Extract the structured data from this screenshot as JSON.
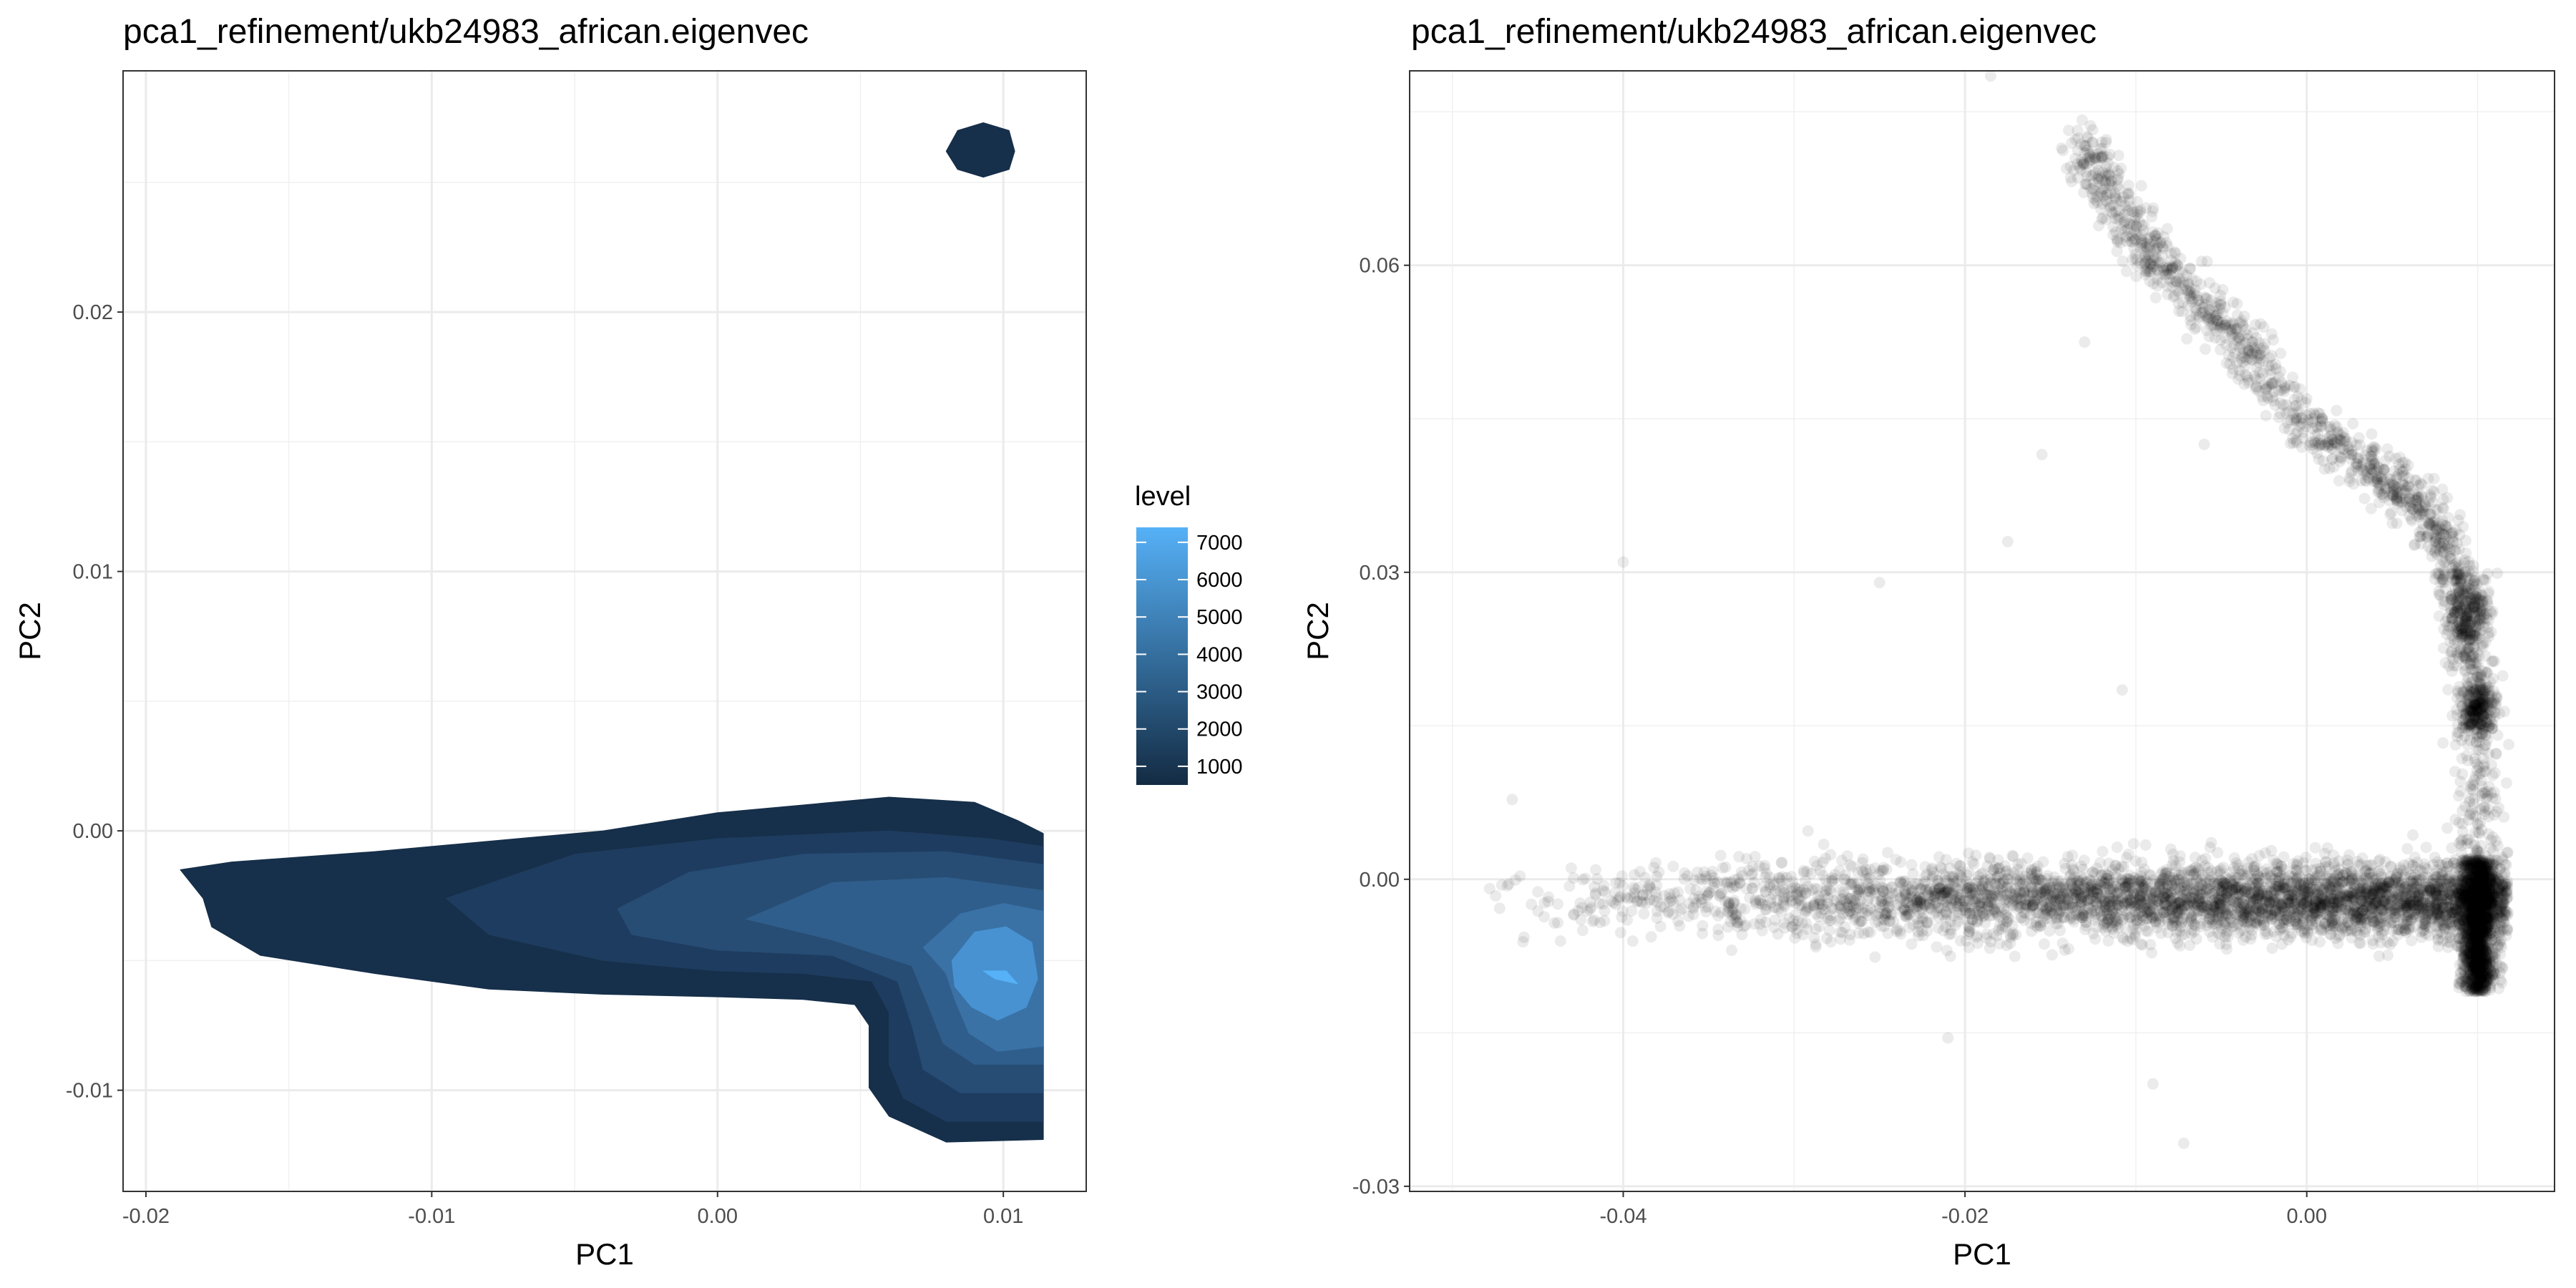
{
  "chart_data": [
    {
      "type": "contour",
      "title": "pca1_refinement/ukb24983_african.eigenvec",
      "xlabel": "PC1",
      "ylabel": "PC2",
      "xlim": [
        -0.0208,
        0.0129
      ],
      "ylim": [
        -0.0139,
        0.0293
      ],
      "x_ticks": [
        -0.02,
        -0.01,
        0.0,
        0.01
      ],
      "x_tick_labels": [
        "-0.02",
        "-0.01",
        "0.00",
        "0.01"
      ],
      "y_ticks": [
        -0.01,
        0.0,
        0.01,
        0.02
      ],
      "y_tick_labels": [
        "-0.01",
        "0.00",
        "0.01",
        "0.02"
      ],
      "grid": true,
      "legend": {
        "title": "level",
        "position": "right",
        "range": [
          500,
          7400
        ],
        "ticks": [
          1000,
          2000,
          3000,
          4000,
          5000,
          6000,
          7000
        ],
        "tick_labels": [
          "1000",
          "2000",
          "3000",
          "4000",
          "5000",
          "6000",
          "7000"
        ],
        "color_low": "#132B43",
        "color_high": "#56B1F7"
      },
      "levels": [
        {
          "level": 1000,
          "color": "#162f4a",
          "polygons": [
            [
              [
                -0.0188,
                -0.0015
              ],
              [
                -0.017,
                -0.0012
              ],
              [
                -0.012,
                -0.0008
              ],
              [
                -0.008,
                -0.0004
              ],
              [
                -0.004,
                0.0
              ],
              [
                0.0,
                0.0007
              ],
              [
                0.006,
                0.0013
              ],
              [
                0.009,
                0.0011
              ],
              [
                0.0105,
                0.0004
              ],
              [
                0.0114,
                -0.0001
              ],
              [
                0.0114,
                -0.0119
              ],
              [
                0.008,
                -0.012
              ],
              [
                0.006,
                -0.011
              ],
              [
                0.0053,
                -0.0099
              ],
              [
                0.0053,
                -0.0075
              ],
              [
                0.0048,
                -0.0067
              ],
              [
                0.003,
                -0.0065
              ],
              [
                0.0,
                -0.0064
              ],
              [
                -0.004,
                -0.0063
              ],
              [
                -0.008,
                -0.0061
              ],
              [
                -0.012,
                -0.0055
              ],
              [
                -0.016,
                -0.0048
              ],
              [
                -0.0177,
                -0.0037
              ],
              [
                -0.018,
                -0.0026
              ]
            ],
            [
              [
                0.008,
                0.0262
              ],
              [
                0.0084,
                0.027
              ],
              [
                0.0093,
                0.0273
              ],
              [
                0.0102,
                0.027
              ],
              [
                0.0104,
                0.0262
              ],
              [
                0.0102,
                0.0255
              ],
              [
                0.0093,
                0.0252
              ],
              [
                0.0084,
                0.0255
              ]
            ]
          ]
        },
        {
          "level": 2000,
          "color": "#1e3c5f",
          "polygons": [
            [
              [
                -0.0095,
                -0.0026
              ],
              [
                -0.005,
                -0.0009
              ],
              [
                0.0,
                -0.0003
              ],
              [
                0.006,
                0.0
              ],
              [
                0.0095,
                -0.0003
              ],
              [
                0.0114,
                -0.0006
              ],
              [
                0.0114,
                -0.0112
              ],
              [
                0.008,
                -0.0112
              ],
              [
                0.0065,
                -0.0103
              ],
              [
                0.006,
                -0.009
              ],
              [
                0.006,
                -0.007
              ],
              [
                0.0054,
                -0.0058
              ],
              [
                0.003,
                -0.0055
              ],
              [
                0.0,
                -0.0054
              ],
              [
                -0.004,
                -0.005
              ],
              [
                -0.008,
                -0.004
              ]
            ]
          ]
        },
        {
          "level": 3000,
          "color": "#274d75",
          "polygons": [
            [
              [
                -0.0035,
                -0.003
              ],
              [
                -0.001,
                -0.0016
              ],
              [
                0.003,
                -0.0009
              ],
              [
                0.008,
                -0.0008
              ],
              [
                0.0114,
                -0.0013
              ],
              [
                0.0114,
                -0.0101
              ],
              [
                0.0085,
                -0.0101
              ],
              [
                0.0072,
                -0.0092
              ],
              [
                0.0068,
                -0.0075
              ],
              [
                0.0063,
                -0.0058
              ],
              [
                0.004,
                -0.0048
              ],
              [
                0.0,
                -0.0046
              ],
              [
                -0.003,
                -0.004
              ]
            ]
          ]
        },
        {
          "level": 4000,
          "color": "#305e8c",
          "polygons": [
            [
              [
                0.001,
                -0.0034
              ],
              [
                0.004,
                -0.002
              ],
              [
                0.008,
                -0.0018
              ],
              [
                0.0114,
                -0.0023
              ],
              [
                0.0114,
                -0.009
              ],
              [
                0.009,
                -0.009
              ],
              [
                0.0079,
                -0.0082
              ],
              [
                0.0074,
                -0.0068
              ],
              [
                0.0068,
                -0.0052
              ],
              [
                0.004,
                -0.0042
              ]
            ]
          ]
        },
        {
          "level": 5000,
          "color": "#3a72a6",
          "polygons": [
            [
              [
                0.0072,
                -0.0045
              ],
              [
                0.0085,
                -0.0032
              ],
              [
                0.01,
                -0.0028
              ],
              [
                0.0114,
                -0.0031
              ],
              [
                0.0114,
                -0.0083
              ],
              [
                0.0098,
                -0.0085
              ],
              [
                0.0088,
                -0.0078
              ],
              [
                0.0083,
                -0.0065
              ],
              [
                0.008,
                -0.0055
              ]
            ]
          ]
        },
        {
          "level": 6000,
          "color": "#4892d2",
          "polygons": [
            [
              [
                0.0082,
                -0.005
              ],
              [
                0.009,
                -0.0039
              ],
              [
                0.0101,
                -0.0037
              ],
              [
                0.011,
                -0.0043
              ],
              [
                0.0112,
                -0.0057
              ],
              [
                0.0108,
                -0.0068
              ],
              [
                0.0098,
                -0.0073
              ],
              [
                0.0089,
                -0.0068
              ],
              [
                0.0083,
                -0.006
              ]
            ]
          ]
        },
        {
          "level": 7000,
          "color": "#56b1f7",
          "polygons": [
            [
              [
                0.0093,
                -0.0054
              ],
              [
                0.0101,
                -0.0054
              ],
              [
                0.0105,
                -0.0059
              ],
              [
                0.0097,
                -0.0057
              ]
            ]
          ]
        }
      ]
    },
    {
      "type": "scatter",
      "title": "pca1_refinement/ukb24983_african.eigenvec",
      "xlabel": "PC1",
      "ylabel": "PC2",
      "xlim": [
        -0.0525,
        0.0145
      ],
      "ylim": [
        -0.0305,
        0.079
      ],
      "x_ticks": [
        -0.04,
        -0.02,
        0.0
      ],
      "x_tick_labels": [
        "-0.04",
        "-0.02",
        "0.00"
      ],
      "y_ticks": [
        -0.03,
        0.0,
        0.03,
        0.06
      ],
      "y_tick_labels": [
        "-0.03",
        "0.00",
        "0.03",
        "0.06"
      ],
      "grid": true,
      "point_color": "#000000",
      "point_alpha": 0.08,
      "outliers": [
        [
          -0.0185,
          0.0785
        ],
        [
          -0.04,
          0.031
        ],
        [
          -0.0072,
          -0.0258
        ],
        [
          -0.0465,
          0.0078
        ],
        [
          -0.009,
          -0.02
        ],
        [
          -0.006,
          0.0425
        ],
        [
          -0.025,
          0.029
        ],
        [
          -0.0155,
          0.0415
        ],
        [
          -0.013,
          0.0525
        ],
        [
          -0.021,
          -0.0155
        ],
        [
          -0.0175,
          0.033
        ],
        [
          -0.0108,
          0.0185
        ]
      ],
      "clusters": [
        {
          "name": "horizontal_band",
          "n": 4200,
          "x_range": [
            -0.049,
            0.0118
          ],
          "y_center": -0.002,
          "y_spread": 0.004,
          "density_bias": "right"
        },
        {
          "name": "right_dense_column",
          "n": 1500,
          "x_center": 0.01,
          "x_spread": 0.001,
          "y_range": [
            -0.011,
            0.002
          ]
        },
        {
          "name": "vertical_arm",
          "n": 1400,
          "path": [
            [
              0.01,
              0.002
            ],
            [
              0.01,
              0.016
            ],
            [
              0.009,
              0.028
            ],
            [
              0.007,
              0.036
            ],
            [
              0.004,
              0.04
            ],
            [
              0.0,
              0.044
            ],
            [
              -0.004,
              0.053
            ],
            [
              -0.008,
              0.059
            ],
            [
              -0.011,
              0.065
            ],
            [
              -0.013,
              0.072
            ]
          ],
          "spread": 0.0012
        },
        {
          "name": "arm_dense_spot",
          "n": 250,
          "x_center": 0.0095,
          "x_spread": 0.0006,
          "y_center": 0.026,
          "y_spread": 0.002
        },
        {
          "name": "arm_dense_spot",
          "n": 250,
          "x_center": 0.01,
          "x_spread": 0.0005,
          "y_center": 0.0165,
          "y_spread": 0.0015
        }
      ]
    }
  ]
}
